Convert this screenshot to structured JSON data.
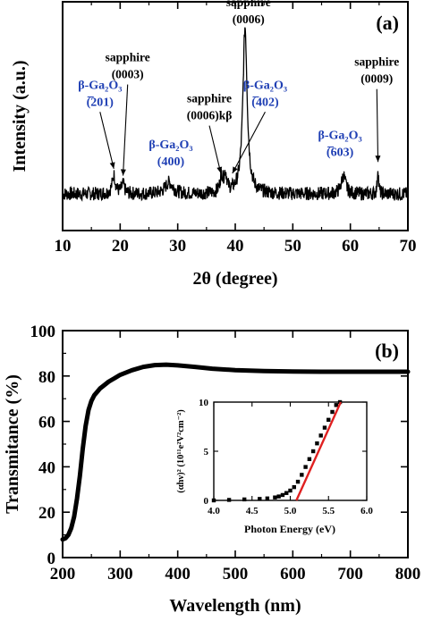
{
  "chart_data": [
    {
      "type": "line",
      "panel_label": "(a)",
      "xlabel": "2θ (degree)",
      "ylabel": "Intensity (a.u.)",
      "xlim": [
        10,
        70
      ],
      "ylim": [
        0,
        1
      ],
      "x_ticks": [
        10,
        20,
        30,
        40,
        50,
        60,
        70
      ],
      "y_ticks_shown": false,
      "grid": false,
      "baseline": 0.16,
      "noise": 0.03,
      "peaks": [
        {
          "x": 18.9,
          "height": 0.08,
          "width": 0.35
        },
        {
          "x": 20.5,
          "height": 0.04,
          "width": 0.3
        },
        {
          "x": 28.5,
          "height": 0.05,
          "width": 0.8
        },
        {
          "x": 37.6,
          "height": 0.07,
          "width": 0.3
        },
        {
          "x": 38.3,
          "height": 0.08,
          "width": 0.3
        },
        {
          "x": 41.7,
          "height": 0.73,
          "width": 0.45
        },
        {
          "x": 58.8,
          "height": 0.08,
          "width": 0.45
        },
        {
          "x": 64.8,
          "height": 0.12,
          "width": 0.12
        }
      ],
      "annotations": [
        {
          "lines": [
            "sapphire",
            "(0006)"
          ],
          "color": "#000000",
          "x": 42.3,
          "y": 0.98
        },
        {
          "lines": [
            "sapphire",
            "(0003)"
          ],
          "color": "#000000",
          "x": 21.3,
          "y": 0.74,
          "arrow_to": [
            20.5,
            0.24
          ]
        },
        {
          "lines": [
            "β-Ga₂O₃",
            "(̅201)"
          ],
          "color": "#1f3fb4",
          "x": 16.5,
          "y": 0.62,
          "arrow_to": [
            18.9,
            0.27
          ]
        },
        {
          "lines": [
            "β-Ga₂O₃",
            "(400)"
          ],
          "color": "#1f3fb4",
          "x": 28.8,
          "y": 0.36
        },
        {
          "lines": [
            "sapphire",
            "(0006)kβ"
          ],
          "color": "#000000",
          "x": 35.5,
          "y": 0.56,
          "arrow_to": [
            37.5,
            0.25
          ]
        },
        {
          "lines": [
            "β-Ga₂O₃",
            "(̅402)"
          ],
          "color": "#1f3fb4",
          "x": 45.2,
          "y": 0.62,
          "arrow_to": [
            39.5,
            0.25
          ]
        },
        {
          "lines": [
            "β-Ga₂O₃",
            "(̅603)"
          ],
          "color": "#1f3fb4",
          "x": 58.2,
          "y": 0.4
        },
        {
          "lines": [
            "sapphire",
            "(0009)"
          ],
          "color": "#000000",
          "x": 64.6,
          "y": 0.72,
          "arrow_to": [
            64.8,
            0.3
          ]
        }
      ]
    },
    {
      "type": "line",
      "panel_label": "(b)",
      "xlabel": "Wavelength (nm)",
      "ylabel": "Transmitance (%)",
      "xlim": [
        200,
        800
      ],
      "ylim": [
        0,
        100
      ],
      "x_ticks": [
        200,
        300,
        400,
        500,
        600,
        700,
        800
      ],
      "y_ticks": [
        0,
        20,
        40,
        60,
        80,
        100
      ],
      "grid": false,
      "series": [
        {
          "x": [
            200,
            205,
            210,
            215,
            220,
            225,
            230,
            235,
            240,
            245,
            250,
            255,
            260,
            265,
            270,
            280,
            290,
            300,
            320,
            340,
            360,
            380,
            400,
            430,
            460,
            500,
            550,
            600,
            650,
            700,
            750,
            800
          ],
          "y": [
            8,
            8.5,
            10,
            13,
            18,
            26,
            36,
            48,
            58,
            65,
            69,
            71.5,
            73,
            74.5,
            75.5,
            77.5,
            79,
            80.5,
            82.5,
            84,
            84.8,
            85,
            84.7,
            84,
            83.2,
            82.6,
            82.2,
            82,
            81.9,
            81.9,
            81.9,
            81.9
          ],
          "color": "#000000"
        }
      ]
    },
    {
      "type": "scatter",
      "inset_of": "(b)",
      "xlabel": "Photon Energy (eV)",
      "ylabel": "(αhν)² (10¹¹e²V²cm⁻²)",
      "xlim": [
        4.0,
        6.0
      ],
      "ylim": [
        0,
        10
      ],
      "x_ticks": [
        4.0,
        4.5,
        5.0,
        5.5,
        6.0
      ],
      "y_ticks": [
        0,
        5,
        10
      ],
      "series": [
        {
          "x": [
            4.0,
            4.2,
            4.4,
            4.6,
            4.7,
            4.8,
            4.85,
            4.9,
            4.95,
            5.0,
            5.05,
            5.1,
            5.15,
            5.2,
            5.25,
            5.3,
            5.35,
            5.4,
            5.45,
            5.5,
            5.55,
            5.6,
            5.65
          ],
          "y": [
            0.0,
            0.05,
            0.1,
            0.15,
            0.2,
            0.3,
            0.4,
            0.55,
            0.75,
            1.0,
            1.35,
            1.9,
            2.6,
            3.4,
            4.2,
            5.0,
            5.8,
            6.6,
            7.4,
            8.2,
            9.0,
            9.7,
            10.0
          ],
          "color": "#000000"
        },
        {
          "name_hidden": true,
          "type": "line",
          "x": [
            5.08,
            5.66
          ],
          "y": [
            0,
            10
          ],
          "color": "#e02020"
        }
      ]
    }
  ]
}
